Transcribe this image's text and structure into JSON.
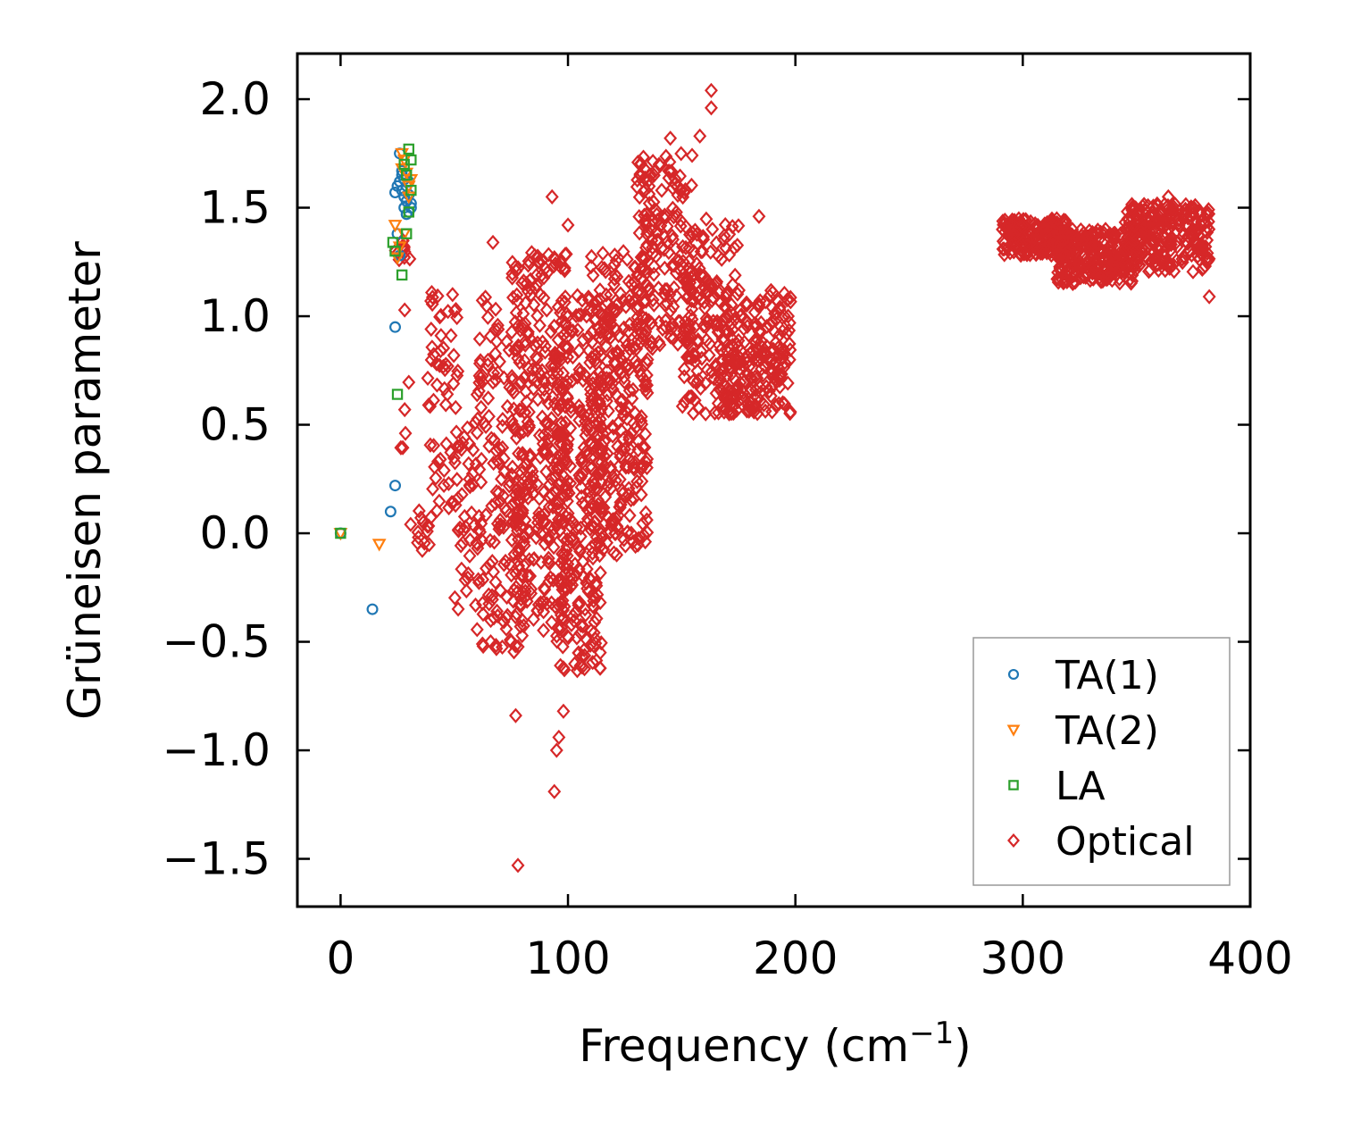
{
  "chart_data": {
    "type": "scatter",
    "title": "",
    "xlabel": "Frequency (cm",
    "xlabel_sup": "−1",
    "xlabel_suffix": ")",
    "ylabel": "Grüneisen parameter",
    "xlim": [
      -19,
      400
    ],
    "ylim": [
      -1.72,
      2.21
    ],
    "xticks": [
      0,
      100,
      200,
      300,
      400
    ],
    "yticks": [
      2.0,
      1.5,
      1.0,
      0.5,
      0.0,
      -0.5,
      -1.0,
      -1.5
    ],
    "xtick_labels": [
      "0",
      "100",
      "200",
      "300",
      "400"
    ],
    "ytick_labels": [
      "2.0",
      "1.5",
      "1.0",
      "0.5",
      "0.0",
      "−0.5",
      "−1.0",
      "−1.5"
    ],
    "legend_position": "bottom-right",
    "series": [
      {
        "name": "TA(1)",
        "marker": "circle",
        "color": "#1f77b4",
        "points": [
          [
            0,
            0.0
          ],
          [
            14,
            -0.35
          ],
          [
            22,
            0.1
          ],
          [
            24,
            0.22
          ],
          [
            24,
            0.95
          ],
          [
            25,
            1.38
          ],
          [
            26,
            1.28
          ],
          [
            24,
            1.57
          ],
          [
            25,
            1.6
          ],
          [
            26,
            1.62
          ],
          [
            27,
            1.58
          ],
          [
            27,
            1.65
          ],
          [
            28,
            1.55
          ],
          [
            28,
            1.5
          ],
          [
            29,
            1.6
          ],
          [
            29,
            1.53
          ],
          [
            30,
            1.48
          ],
          [
            30,
            1.56
          ],
          [
            31,
            1.52
          ],
          [
            31,
            1.5
          ],
          [
            26,
            1.75
          ],
          [
            27,
            1.67
          ],
          [
            28,
            1.63
          ],
          [
            29,
            1.47
          ],
          [
            30,
            1.62
          ]
        ]
      },
      {
        "name": "TA(2)",
        "marker": "triangle-down",
        "color": "#ff7f0e",
        "points": [
          [
            0,
            0.0
          ],
          [
            17,
            -0.05
          ],
          [
            24,
            1.42
          ],
          [
            25,
            1.27
          ],
          [
            26,
            1.32
          ],
          [
            27,
            1.68
          ],
          [
            28,
            1.72
          ],
          [
            29,
            1.66
          ],
          [
            30,
            1.6
          ],
          [
            31,
            1.63
          ],
          [
            27,
            1.75
          ],
          [
            28,
            1.38
          ],
          [
            30,
            1.55
          ]
        ]
      },
      {
        "name": "LA",
        "marker": "square",
        "color": "#2ca02c",
        "points": [
          [
            0,
            0.0
          ],
          [
            25,
            0.64
          ],
          [
            27,
            1.19
          ],
          [
            23,
            1.34
          ],
          [
            24,
            1.3
          ],
          [
            29,
            1.38
          ],
          [
            30,
            1.77
          ],
          [
            31,
            1.72
          ],
          [
            28,
            1.7
          ],
          [
            29,
            1.65
          ],
          [
            30,
            1.48
          ],
          [
            31,
            1.58
          ]
        ]
      },
      {
        "name": "Optical",
        "marker": "diamond",
        "color": "#d62728",
        "clusters": [
          {
            "x": [
              23,
              31
            ],
            "y": [
              1.25,
              1.36
            ],
            "n": 14
          },
          {
            "x": [
              26,
              30
            ],
            "y": [
              0.3,
              1.05
            ],
            "n": 6
          },
          {
            "x": [
              30,
              40
            ],
            "y": [
              -0.08,
              0.12
            ],
            "n": 14
          },
          {
            "x": [
              38,
              52
            ],
            "y": [
              0.1,
              1.12
            ],
            "n": 60
          },
          {
            "x": [
              50,
              60
            ],
            "y": [
              -0.35,
              0.55
            ],
            "n": 40
          },
          {
            "x": [
              60,
              80
            ],
            "y": [
              -0.55,
              1.1
            ],
            "n": 160
          },
          {
            "x": [
              75,
              100
            ],
            "y": [
              -0.45,
              1.3
            ],
            "n": 320
          },
          {
            "x": [
              95,
              115
            ],
            "y": [
              -0.65,
              1.1
            ],
            "n": 260
          },
          {
            "x": [
              110,
              135
            ],
            "y": [
              -0.1,
              1.3
            ],
            "n": 300
          },
          {
            "x": [
              130,
              155
            ],
            "y": [
              0.85,
              1.75
            ],
            "n": 170
          },
          {
            "x": [
              150,
              175
            ],
            "y": [
              0.55,
              1.45
            ],
            "n": 160
          },
          {
            "x": [
              165,
              198
            ],
            "y": [
              0.55,
              1.12
            ],
            "n": 220
          },
          {
            "x": [
              291,
              320
            ],
            "y": [
              1.28,
              1.45
            ],
            "n": 220
          },
          {
            "x": [
              315,
              350
            ],
            "y": [
              1.15,
              1.4
            ],
            "n": 260
          },
          {
            "x": [
              345,
              382
            ],
            "y": [
              1.2,
              1.52
            ],
            "n": 260
          }
        ],
        "outliers": [
          [
            78,
            -1.53
          ],
          [
            94,
            -1.19
          ],
          [
            95,
            -1.0
          ],
          [
            96,
            -0.94
          ],
          [
            98,
            -0.82
          ],
          [
            77,
            -0.84
          ],
          [
            163,
            2.04
          ],
          [
            163,
            1.96
          ],
          [
            145,
            1.82
          ],
          [
            158,
            1.83
          ],
          [
            184,
            1.46
          ],
          [
            67,
            1.34
          ],
          [
            93,
            1.55
          ],
          [
            100,
            1.42
          ],
          [
            98,
            -0.62
          ],
          [
            75,
            -0.5
          ],
          [
            66,
            -0.5
          ],
          [
            382,
            1.09
          ],
          [
            364,
            1.55
          ]
        ]
      }
    ]
  }
}
